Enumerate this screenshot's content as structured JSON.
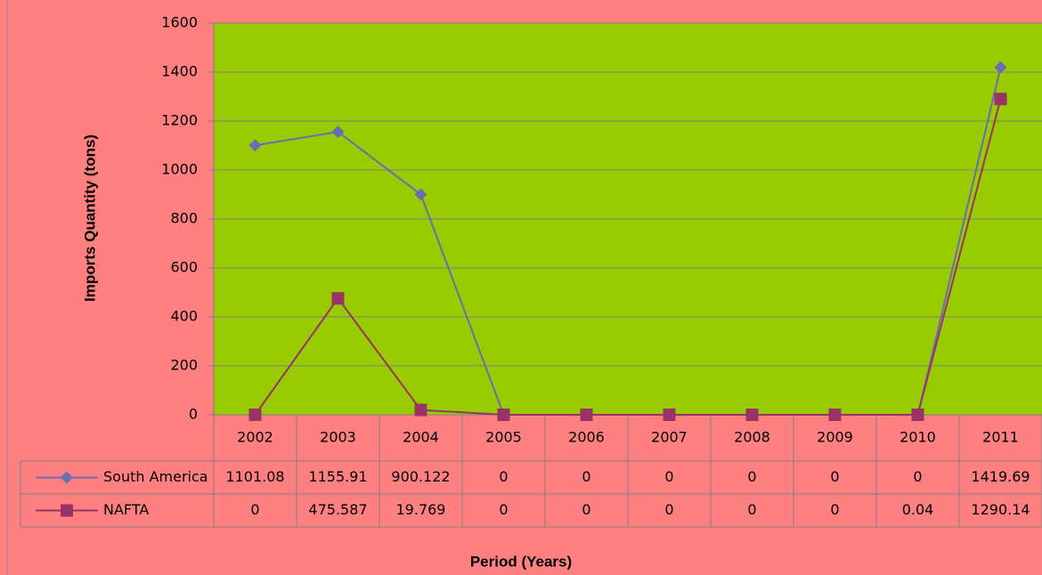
{
  "chart_data": {
    "type": "line",
    "y_label": "Imports Quantity (tons)",
    "x_label": "Period (Years)",
    "categories": [
      "2002",
      "2003",
      "2004",
      "2005",
      "2006",
      "2007",
      "2008",
      "2009",
      "2010",
      "2011"
    ],
    "series": [
      {
        "name": "South America",
        "color": "#6c6cb0",
        "marker": "diamond",
        "values": [
          1101.08,
          1155.91,
          900.122,
          0,
          0,
          0,
          0,
          0,
          0,
          1419.69
        ]
      },
      {
        "name": "NAFTA",
        "color": "#993366",
        "marker": "square",
        "values": [
          0,
          475.587,
          19.769,
          0,
          0,
          0,
          0,
          0,
          0.04,
          1290.14
        ]
      }
    ],
    "ylim": [
      0,
      1600
    ],
    "yticks": [
      0,
      200,
      400,
      600,
      800,
      1000,
      1200,
      1400,
      1600
    ],
    "grid": true,
    "data_table": true
  }
}
